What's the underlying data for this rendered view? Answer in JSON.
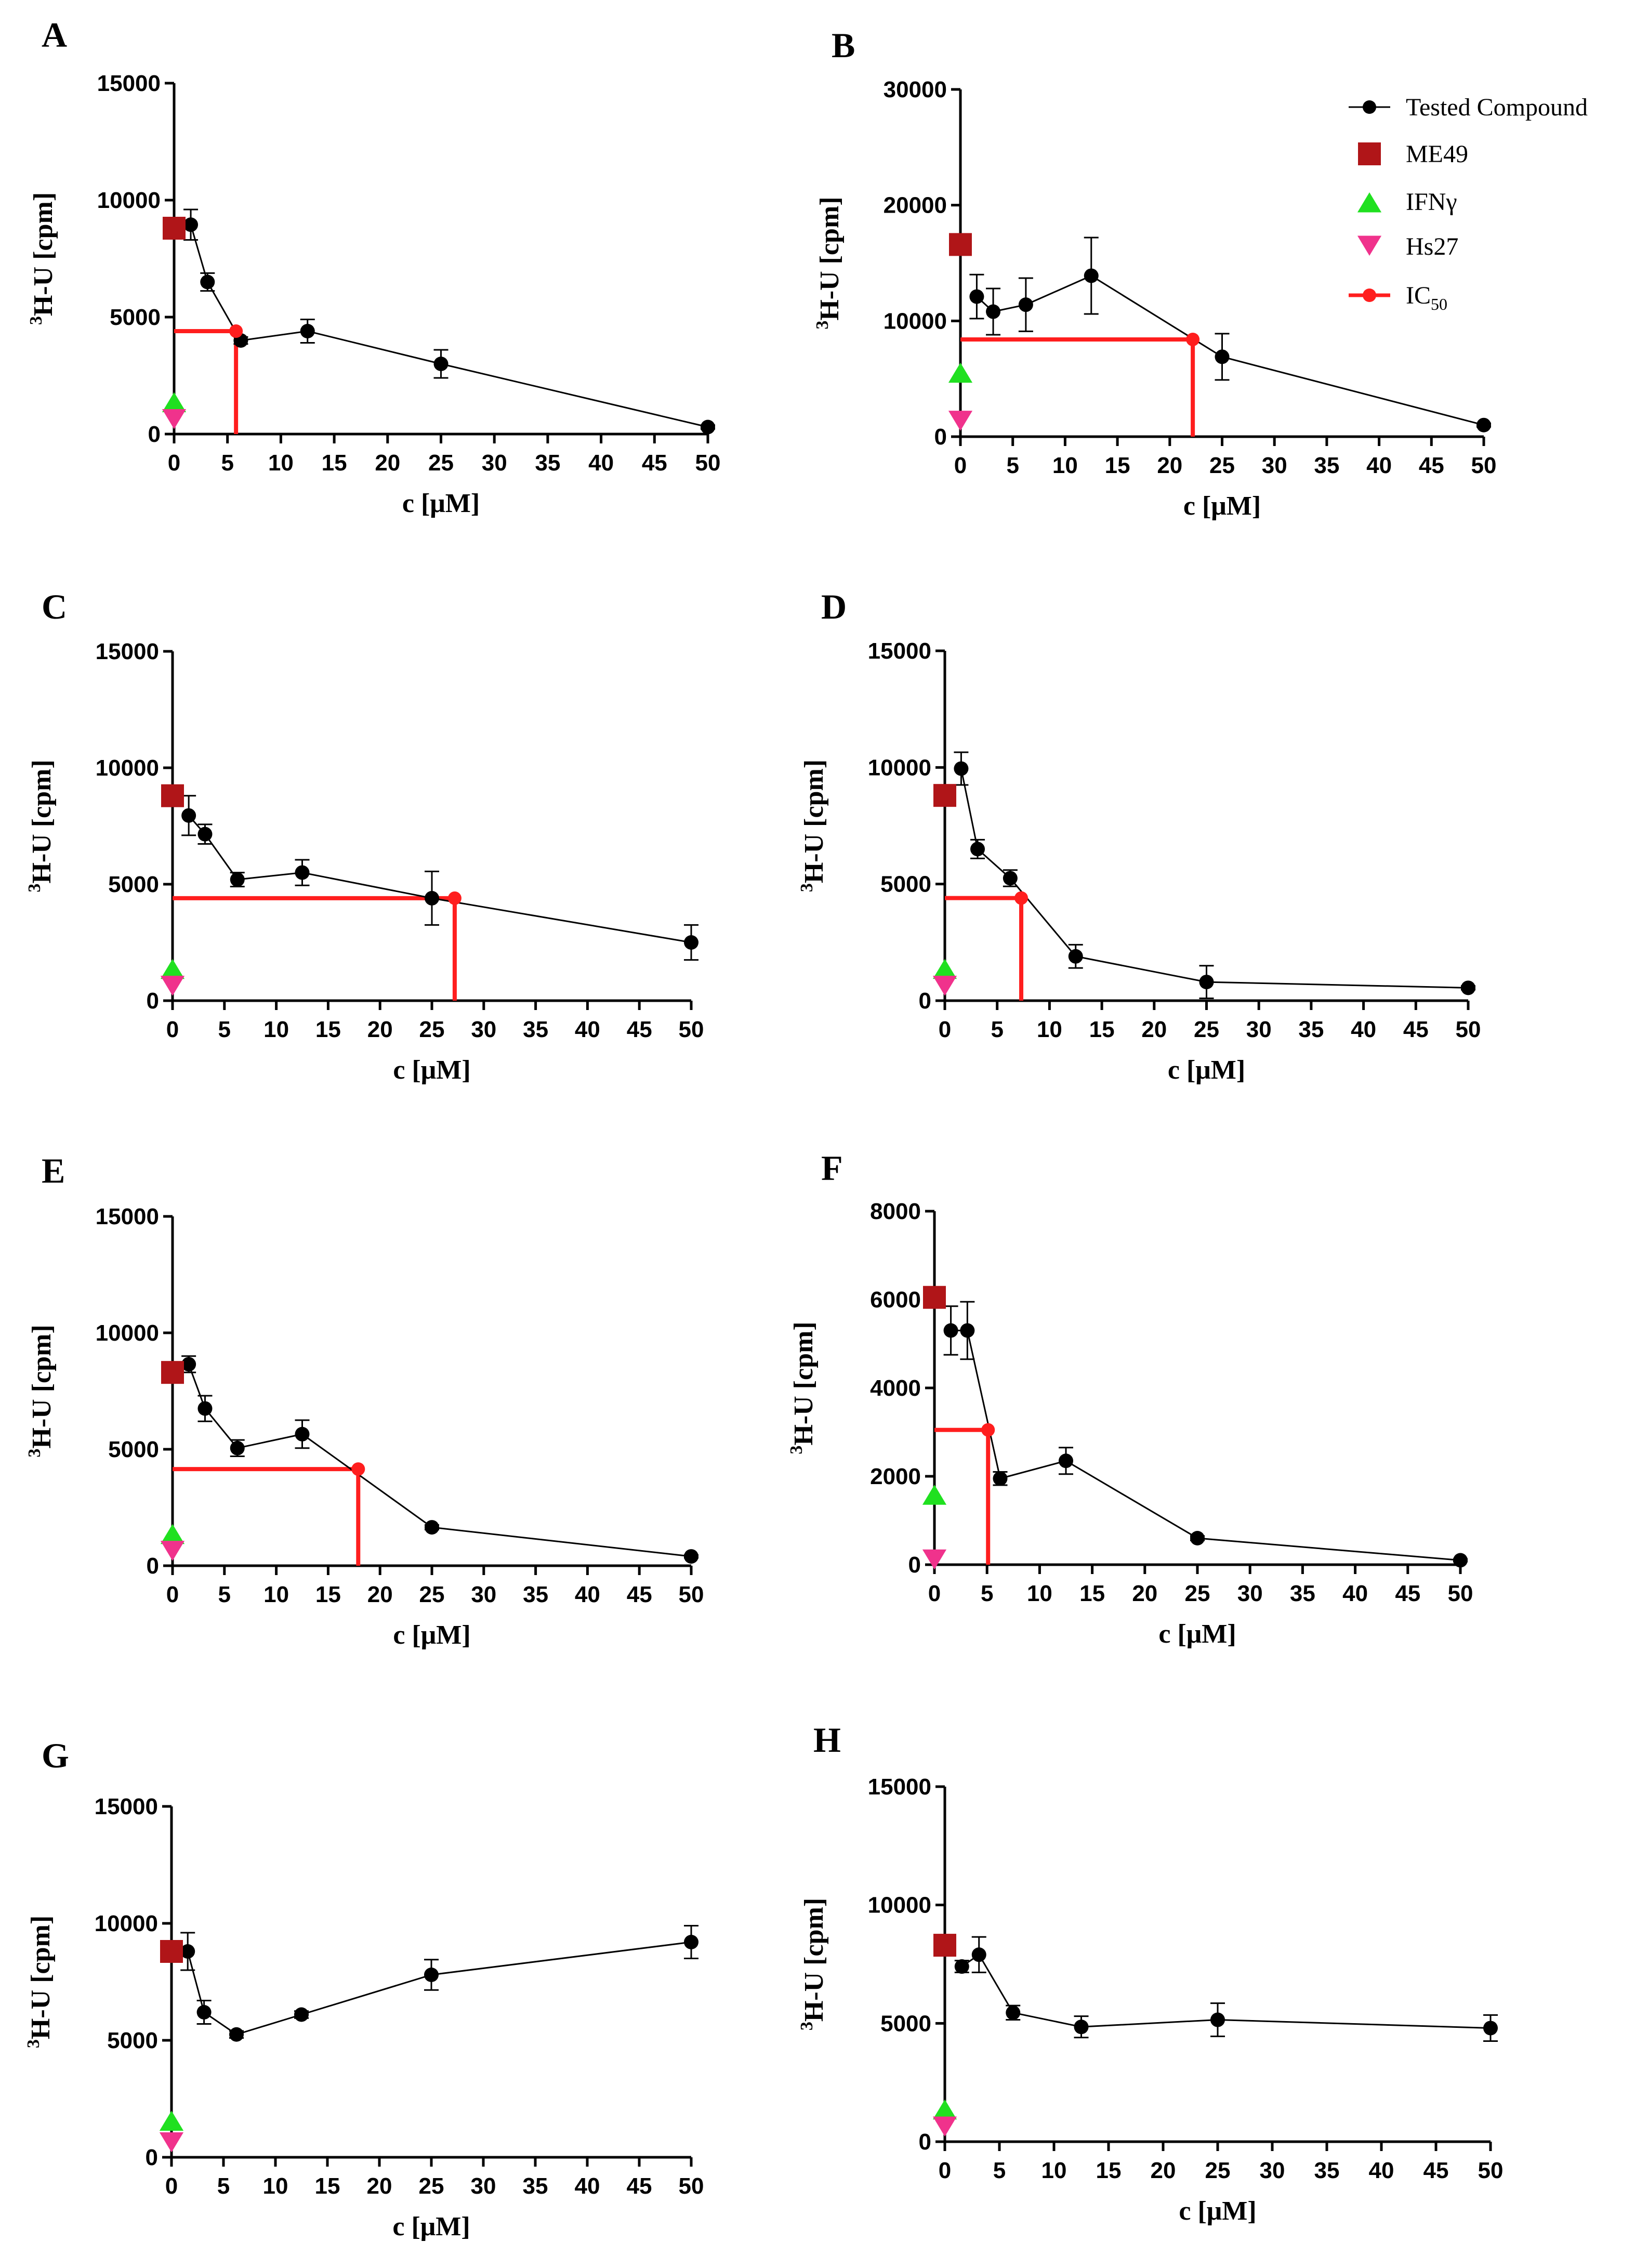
{
  "figure": {
    "legend": {
      "position": "top-right of panel B",
      "entries": [
        {
          "key": "tested",
          "label": "Tested Compound",
          "marker": "circle-line",
          "color": "#000000"
        },
        {
          "key": "me49",
          "label": "ME49",
          "marker": "square",
          "color": "#B01518"
        },
        {
          "key": "ifn",
          "label": "IFNγ",
          "marker": "triangle-up",
          "color": "#20E020"
        },
        {
          "key": "hs27",
          "label": "Hs27",
          "marker": "triangle-down",
          "color": "#F0328C"
        },
        {
          "key": "ic50",
          "label": "IC",
          "label_sub": "50",
          "marker": "circle-line",
          "color": "#FF1E1E"
        }
      ]
    }
  },
  "chart_data": [
    {
      "panel": "A",
      "type": "line",
      "xlabel": "c [μM]",
      "ylabel_sup": "3",
      "ylabel": "H-U [cpm]",
      "xlim": [
        0,
        50
      ],
      "ylim": [
        0,
        15000
      ],
      "xticks": [
        "0",
        "5",
        "10",
        "15",
        "20",
        "25",
        "30",
        "35",
        "40",
        "45",
        "50"
      ],
      "yticks": [
        "0",
        "5000",
        "10000",
        "15000"
      ],
      "series": [
        {
          "name": "Tested Compound",
          "x": [
            1.56,
            3.13,
            6.25,
            12.5,
            25,
            50
          ],
          "y": [
            8950,
            6500,
            4000,
            4400,
            3000,
            300
          ],
          "err": [
            650,
            380,
            150,
            500,
            600,
            80
          ]
        }
      ],
      "controls": {
        "me49": 8800,
        "ifn": 1300,
        "hs27": 700
      },
      "ic50": {
        "x": 5.8,
        "y": 4400
      }
    },
    {
      "panel": "B",
      "type": "line",
      "xlabel": "c [μM]",
      "ylabel_sup": "3",
      "ylabel": "H-U [cpm]",
      "xlim": [
        0,
        50
      ],
      "ylim": [
        0,
        30000
      ],
      "xticks": [
        "0",
        "5",
        "10",
        "15",
        "20",
        "25",
        "30",
        "35",
        "40",
        "45",
        "50"
      ],
      "yticks": [
        "0",
        "10000",
        "20000",
        "30000"
      ],
      "series": [
        {
          "name": "Tested Compound",
          "x": [
            1.56,
            3.13,
            6.25,
            12.5,
            25,
            50
          ],
          "y": [
            12100,
            10800,
            11400,
            13900,
            6900,
            1000
          ],
          "err": [
            1900,
            2000,
            2300,
            3300,
            2000,
            150
          ]
        }
      ],
      "controls": {
        "me49": 16600,
        "ifn": 5400,
        "hs27": 1500
      },
      "ic50": {
        "x": 22.2,
        "y": 8400
      }
    },
    {
      "panel": "C",
      "type": "line",
      "xlabel": "c [μM]",
      "ylabel_sup": "3",
      "ylabel": "H-U [cpm]",
      "xlim": [
        0,
        50
      ],
      "ylim": [
        0,
        15000
      ],
      "xticks": [
        "0",
        "5",
        "10",
        "15",
        "20",
        "25",
        "30",
        "35",
        "40",
        "45",
        "50"
      ],
      "yticks": [
        "0",
        "5000",
        "10000",
        "15000"
      ],
      "series": [
        {
          "name": "Tested Compound",
          "x": [
            1.56,
            3.13,
            6.25,
            12.5,
            25,
            50
          ],
          "y": [
            7950,
            7150,
            5200,
            5500,
            4400,
            2500
          ],
          "err": [
            850,
            420,
            300,
            550,
            1150,
            750
          ]
        }
      ],
      "controls": {
        "me49": 8800,
        "ifn": 1300,
        "hs27": 700
      },
      "ic50": {
        "x": 27.2,
        "y": 4400
      }
    },
    {
      "panel": "D",
      "type": "line",
      "xlabel": "c [μM]",
      "ylabel_sup": "3",
      "ylabel": "H-U [cpm]",
      "xlim": [
        0,
        50
      ],
      "ylim": [
        0,
        15000
      ],
      "xticks": [
        "0",
        "5",
        "10",
        "15",
        "20",
        "25",
        "30",
        "35",
        "40",
        "45",
        "50"
      ],
      "yticks": [
        "0",
        "5000",
        "10000",
        "15000"
      ],
      "series": [
        {
          "name": "Tested Compound",
          "x": [
            1.56,
            3.13,
            6.25,
            12.5,
            25,
            50
          ],
          "y": [
            9950,
            6500,
            5250,
            1900,
            800,
            550
          ],
          "err": [
            700,
            400,
            350,
            500,
            700,
            80
          ]
        }
      ],
      "controls": {
        "me49": 8800,
        "ifn": 1300,
        "hs27": 700
      },
      "ic50": {
        "x": 7.3,
        "y": 4400
      }
    },
    {
      "panel": "E",
      "type": "line",
      "xlabel": "c [μM]",
      "ylabel_sup": "3",
      "ylabel": "H-U [cpm]",
      "xlim": [
        0,
        50
      ],
      "ylim": [
        0,
        15000
      ],
      "xticks": [
        "0",
        "5",
        "10",
        "15",
        "20",
        "25",
        "30",
        "35",
        "40",
        "45",
        "50"
      ],
      "yticks": [
        "0",
        "5000",
        "10000",
        "15000"
      ],
      "series": [
        {
          "name": "Tested Compound",
          "x": [
            1.56,
            3.13,
            6.25,
            12.5,
            25,
            50
          ],
          "y": [
            8650,
            6750,
            5050,
            5650,
            1650,
            400
          ],
          "err": [
            350,
            550,
            350,
            600,
            100,
            60
          ]
        }
      ],
      "controls": {
        "me49": 8300,
        "ifn": 1300,
        "hs27": 700
      },
      "ic50": {
        "x": 17.9,
        "y": 4150
      }
    },
    {
      "panel": "F",
      "type": "line",
      "xlabel": "c [μM]",
      "ylabel_sup": "3",
      "ylabel": "H-U [cpm]",
      "xlim": [
        0,
        50
      ],
      "ylim": [
        0,
        8000
      ],
      "xticks": [
        "0",
        "5",
        "10",
        "15",
        "20",
        "25",
        "30",
        "35",
        "40",
        "45",
        "50"
      ],
      "yticks": [
        "0",
        "2000",
        "4000",
        "6000",
        "8000"
      ],
      "series": [
        {
          "name": "Tested Compound",
          "x": [
            1.56,
            3.13,
            6.25,
            12.5,
            25,
            50
          ],
          "y": [
            5300,
            5300,
            1950,
            2350,
            600,
            100
          ],
          "err": [
            550,
            650,
            150,
            300,
            50,
            30
          ]
        }
      ],
      "controls": {
        "me49": 6050,
        "ifn": 1550,
        "hs27": 150
      },
      "ic50": {
        "x": 5.1,
        "y": 3050
      }
    },
    {
      "panel": "G",
      "type": "line",
      "xlabel": "c [μM]",
      "ylabel_sup": "3",
      "ylabel": "H-U [cpm]",
      "xlim": [
        0,
        50
      ],
      "ylim": [
        0,
        15000
      ],
      "xticks": [
        "0",
        "5",
        "10",
        "15",
        "20",
        "25",
        "30",
        "35",
        "40",
        "45",
        "50"
      ],
      "yticks": [
        "0",
        "5000",
        "10000",
        "15000"
      ],
      "series": [
        {
          "name": "Tested Compound",
          "x": [
            1.56,
            3.13,
            6.25,
            12.5,
            25,
            50
          ],
          "y": [
            8800,
            6200,
            5250,
            6100,
            7800,
            9200
          ],
          "err": [
            800,
            500,
            150,
            150,
            650,
            700
          ]
        }
      ],
      "controls": {
        "me49": 8800,
        "ifn": 1500,
        "hs27": 700
      },
      "ic50": null
    },
    {
      "panel": "H",
      "type": "line",
      "xlabel": "c [μM]",
      "ylabel_sup": "3",
      "ylabel": "H-U [cpm]",
      "xlim": [
        0,
        50
      ],
      "ylim": [
        0,
        15000
      ],
      "xticks": [
        "0",
        "5",
        "10",
        "15",
        "20",
        "25",
        "30",
        "35",
        "40",
        "45",
        "50"
      ],
      "yticks": [
        "0",
        "5000",
        "10000",
        "15000"
      ],
      "series": [
        {
          "name": "Tested Compound",
          "x": [
            1.56,
            3.13,
            6.25,
            12.5,
            25,
            50
          ],
          "y": [
            7400,
            7900,
            5450,
            4850,
            5150,
            4800
          ],
          "err": [
            250,
            750,
            300,
            450,
            700,
            550
          ]
        }
      ],
      "controls": {
        "me49": 8300,
        "ifn": 1300,
        "hs27": 700
      },
      "ic50": null
    }
  ]
}
